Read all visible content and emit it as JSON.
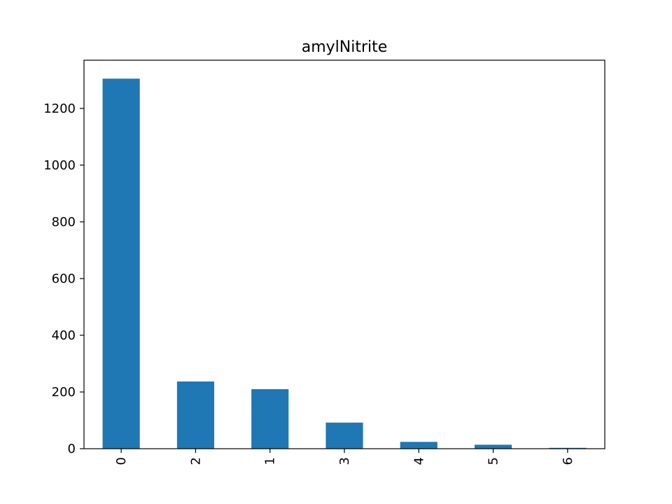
{
  "chart_data": {
    "type": "bar",
    "title": "amylNitrite",
    "xlabel": "",
    "ylabel": "",
    "categories": [
      "0",
      "2",
      "1",
      "3",
      "4",
      "5",
      "6"
    ],
    "values": [
      1305,
      237,
      210,
      92,
      24,
      14,
      3
    ],
    "ylim": [
      0,
      1370
    ],
    "yticks": [
      0,
      200,
      400,
      600,
      800,
      1000,
      1200
    ],
    "bar_color": "#1f77b4",
    "grid": false,
    "legend": "none",
    "xtick_rotation": "vertical"
  }
}
